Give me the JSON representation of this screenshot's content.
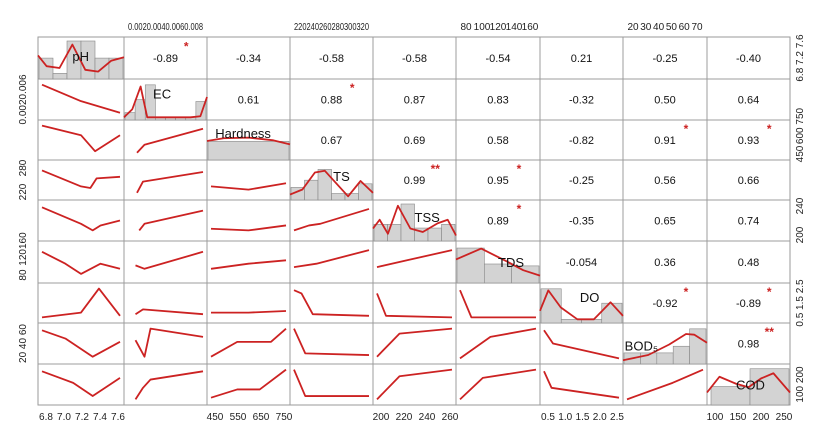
{
  "chart_data": {
    "type": "scatter",
    "variables": [
      "pH",
      "EC",
      "Hardness",
      "TS",
      "TSS",
      "TDS",
      "DO",
      "BOD₅",
      "COD"
    ],
    "colors": {
      "fit_line": "#cc2222",
      "significance": "#cc2222",
      "histogram_fill": "#d3d3d3",
      "histogram_stroke": "#888888",
      "panel_border": "#9a9a9a"
    },
    "correlations": [
      {
        "pair": [
          "pH",
          "EC"
        ],
        "r": "-0.89",
        "sig": "*"
      },
      {
        "pair": [
          "pH",
          "Hardness"
        ],
        "r": "-0.34",
        "sig": ""
      },
      {
        "pair": [
          "pH",
          "TS"
        ],
        "r": "-0.58",
        "sig": ""
      },
      {
        "pair": [
          "pH",
          "TSS"
        ],
        "r": "-0.58",
        "sig": ""
      },
      {
        "pair": [
          "pH",
          "TDS"
        ],
        "r": "-0.54",
        "sig": ""
      },
      {
        "pair": [
          "pH",
          "DO"
        ],
        "r": "0.21",
        "sig": ""
      },
      {
        "pair": [
          "pH",
          "BOD₅"
        ],
        "r": "-0.25",
        "sig": ""
      },
      {
        "pair": [
          "pH",
          "COD"
        ],
        "r": "-0.40",
        "sig": ""
      },
      {
        "pair": [
          "EC",
          "Hardness"
        ],
        "r": "0.61",
        "sig": ""
      },
      {
        "pair": [
          "EC",
          "TS"
        ],
        "r": "0.88",
        "sig": "*"
      },
      {
        "pair": [
          "EC",
          "TSS"
        ],
        "r": "0.87",
        "sig": ""
      },
      {
        "pair": [
          "EC",
          "TDS"
        ],
        "r": "0.83",
        "sig": ""
      },
      {
        "pair": [
          "EC",
          "DO"
        ],
        "r": "-0.32",
        "sig": ""
      },
      {
        "pair": [
          "EC",
          "BOD₅"
        ],
        "r": "0.50",
        "sig": ""
      },
      {
        "pair": [
          "EC",
          "COD"
        ],
        "r": "0.64",
        "sig": ""
      },
      {
        "pair": [
          "Hardness",
          "TS"
        ],
        "r": "0.67",
        "sig": ""
      },
      {
        "pair": [
          "Hardness",
          "TSS"
        ],
        "r": "0.69",
        "sig": ""
      },
      {
        "pair": [
          "Hardness",
          "TDS"
        ],
        "r": "0.58",
        "sig": ""
      },
      {
        "pair": [
          "Hardness",
          "DO"
        ],
        "r": "-0.82",
        "sig": ""
      },
      {
        "pair": [
          "Hardness",
          "BOD₅"
        ],
        "r": "0.91",
        "sig": "*"
      },
      {
        "pair": [
          "Hardness",
          "COD"
        ],
        "r": "0.93",
        "sig": "*"
      },
      {
        "pair": [
          "TS",
          "TSS"
        ],
        "r": "0.99",
        "sig": "**"
      },
      {
        "pair": [
          "TS",
          "TDS"
        ],
        "r": "0.95",
        "sig": "*"
      },
      {
        "pair": [
          "TS",
          "DO"
        ],
        "r": "-0.25",
        "sig": ""
      },
      {
        "pair": [
          "TS",
          "BOD₅"
        ],
        "r": "0.56",
        "sig": ""
      },
      {
        "pair": [
          "TS",
          "COD"
        ],
        "r": "0.66",
        "sig": ""
      },
      {
        "pair": [
          "TSS",
          "TDS"
        ],
        "r": "0.89",
        "sig": "*"
      },
      {
        "pair": [
          "TSS",
          "DO"
        ],
        "r": "-0.35",
        "sig": ""
      },
      {
        "pair": [
          "TSS",
          "BOD₅"
        ],
        "r": "0.65",
        "sig": ""
      },
      {
        "pair": [
          "TSS",
          "COD"
        ],
        "r": "0.74",
        "sig": ""
      },
      {
        "pair": [
          "TDS",
          "DO"
        ],
        "r": "-0.054",
        "sig": ""
      },
      {
        "pair": [
          "TDS",
          "BOD₅"
        ],
        "r": "0.36",
        "sig": ""
      },
      {
        "pair": [
          "TDS",
          "COD"
        ],
        "r": "0.48",
        "sig": ""
      },
      {
        "pair": [
          "DO",
          "BOD₅"
        ],
        "r": "-0.92",
        "sig": "*"
      },
      {
        "pair": [
          "DO",
          "COD"
        ],
        "r": "-0.89",
        "sig": "*"
      },
      {
        "pair": [
          "BOD₅",
          "COD"
        ],
        "r": "0.98",
        "sig": "**"
      }
    ],
    "bottom_axes": [
      [
        "6.8",
        "7.0",
        "7.2",
        "7.4",
        "7.6"
      ],
      [],
      [
        "450",
        "550",
        "650",
        "750"
      ],
      [],
      [
        "200",
        "220",
        "240",
        "260"
      ],
      [],
      [
        "0.5",
        "1.0",
        "1.5",
        "2.0",
        "2.5"
      ],
      [],
      [
        "100",
        "150",
        "200",
        "250"
      ]
    ],
    "top_axes": [
      [],
      [
        "0.002",
        "0.004",
        "0.006",
        "0.008"
      ],
      [],
      [
        "220",
        "240",
        "260",
        "280",
        "300",
        "320"
      ],
      [],
      [
        "80",
        "100",
        "120",
        "140",
        "160"
      ],
      [],
      [
        "20",
        "30",
        "40",
        "50",
        "60",
        "70"
      ],
      []
    ],
    "left_axes": [
      [],
      [
        "0.002",
        "0.006"
      ],
      [],
      [
        "220",
        "280"
      ],
      [],
      [
        "80",
        "120160"
      ],
      [],
      [
        "20 40 60"
      ],
      []
    ],
    "right_axes": [
      [
        "6.8 7.2 7.6"
      ],
      [],
      [
        "450",
        "600 750"
      ],
      [],
      [
        "200",
        "240"
      ],
      [],
      [
        "0.5 1.5 2.5"
      ],
      [],
      [
        "100 200"
      ]
    ]
  }
}
